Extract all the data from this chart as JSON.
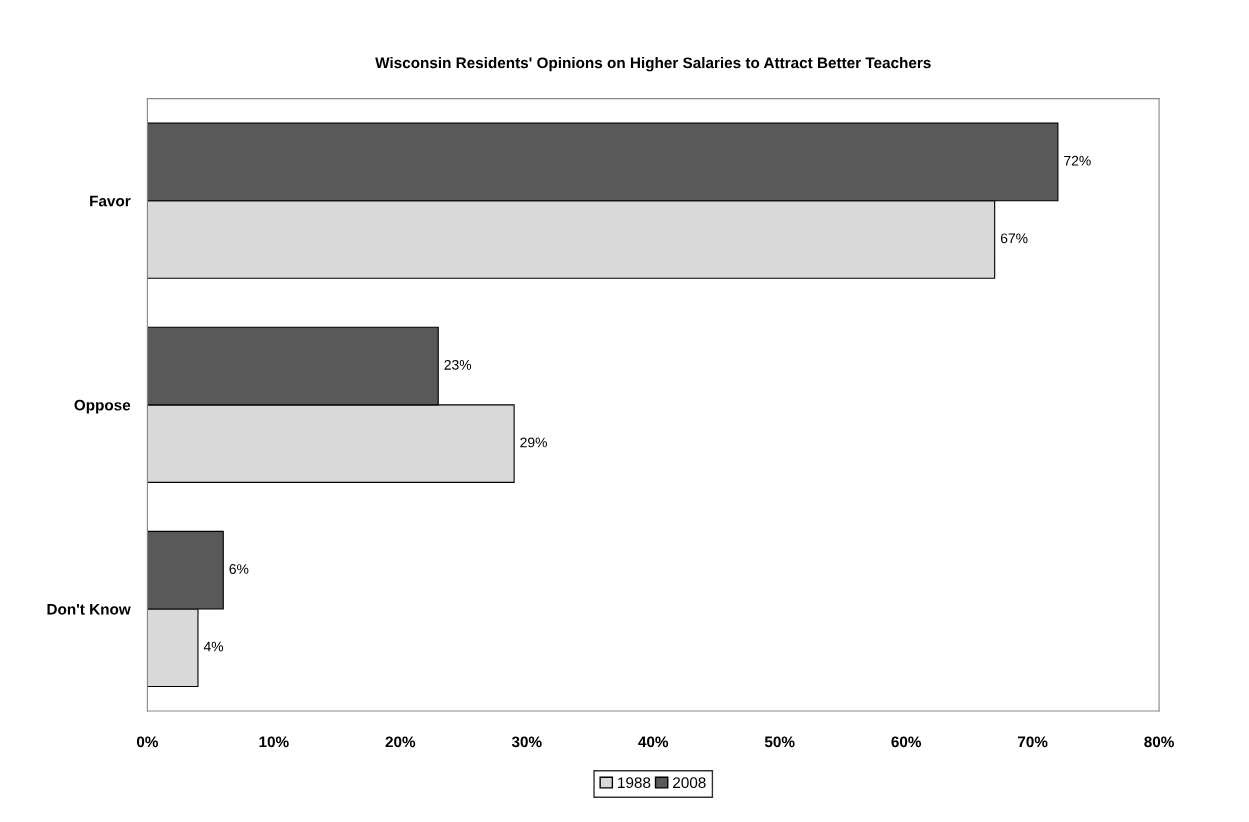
{
  "chart_data": {
    "type": "bar",
    "orientation": "horizontal",
    "title": "Wisconsin Residents' Opinions on Higher Salaries to Attract Better Teachers",
    "categories": [
      "Favor",
      "Oppose",
      "Don't Know"
    ],
    "series": [
      {
        "name": "1988",
        "color": "#d9d9d9",
        "values": [
          67,
          29,
          4
        ],
        "value_labels": [
          "67%",
          "29%",
          "4%"
        ]
      },
      {
        "name": "2008",
        "color": "#595959",
        "values": [
          72,
          23,
          6
        ],
        "value_labels": [
          "72%",
          "23%",
          "6%"
        ]
      }
    ],
    "xlim": [
      0,
      80
    ],
    "xticks": [
      {
        "value": 0,
        "label": "0%"
      },
      {
        "value": 10,
        "label": "10%"
      },
      {
        "value": 20,
        "label": "20%"
      },
      {
        "value": 30,
        "label": "30%"
      },
      {
        "value": 40,
        "label": "40%"
      },
      {
        "value": 50,
        "label": "50%"
      },
      {
        "value": 60,
        "label": "60%"
      },
      {
        "value": 70,
        "label": "70%"
      },
      {
        "value": 80,
        "label": "80%"
      }
    ],
    "legend": "bottom",
    "grid": false
  }
}
